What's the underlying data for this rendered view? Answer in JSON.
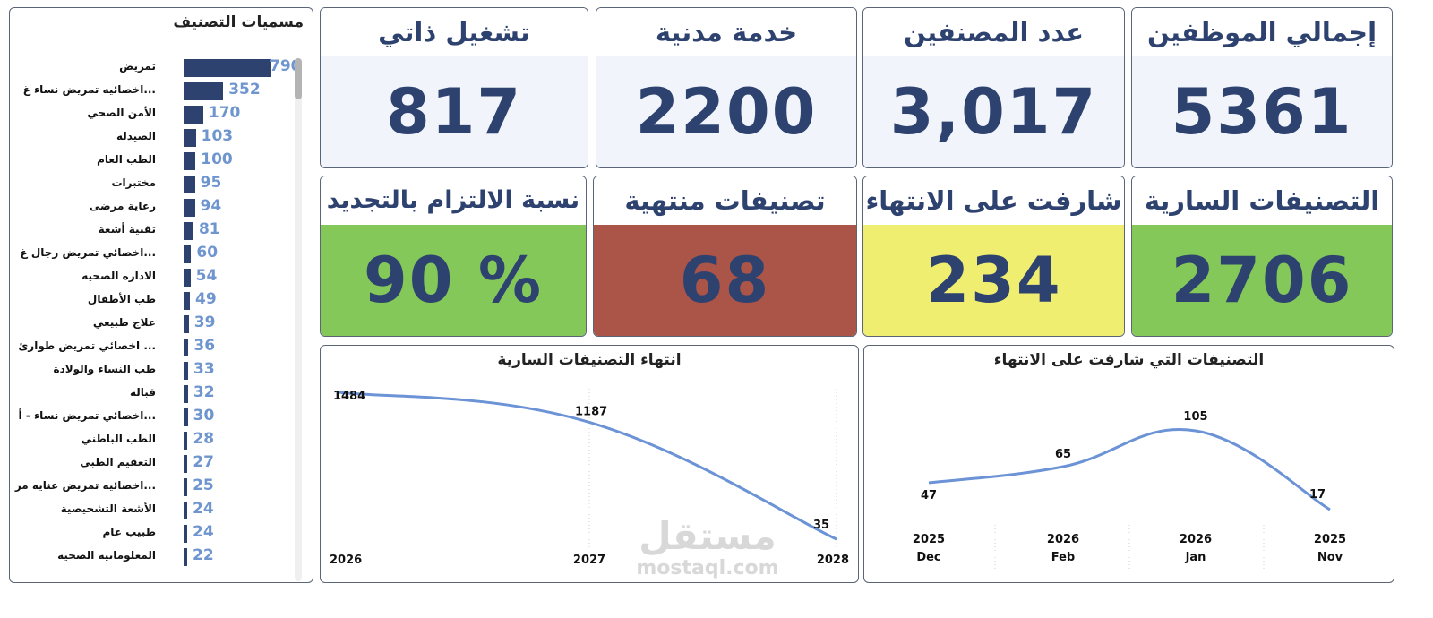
{
  "cards_row1": [
    {
      "id": "total-employees",
      "title": "إجمالي الموظفين",
      "value": "5361"
    },
    {
      "id": "classified-count",
      "title": "عدد المصنفين",
      "value": "3,017"
    },
    {
      "id": "civil-service",
      "title": "خدمة مدنية",
      "value": "2200"
    },
    {
      "id": "self-operation",
      "title": "تشغيل ذاتي",
      "value": "817"
    }
  ],
  "cards_row2": [
    {
      "id": "active-classifications",
      "title": "التصنيفات السارية",
      "value": "2706",
      "color": "#84c85a"
    },
    {
      "id": "near-expiry",
      "title": "شارفت على الانتهاء",
      "value": "234",
      "color": "#f0ee70"
    },
    {
      "id": "expired",
      "title": "تصنيفات منتهية",
      "value": "68",
      "color": "#ab5448"
    },
    {
      "id": "renewal-compliance",
      "title": "نسبة الالتزام بالتجديد",
      "value": "90 %",
      "color": "#84c85a"
    }
  ],
  "classification_list": {
    "title": "مسميات التصنيف",
    "items": [
      {
        "label": "تمريض",
        "value": 790
      },
      {
        "label": "...اخصائيه تمريض نساء غ",
        "value": 352
      },
      {
        "label": "الأمن الصحي",
        "value": 170
      },
      {
        "label": "الصيدله",
        "value": 103
      },
      {
        "label": "الطب العام",
        "value": 100
      },
      {
        "label": "مختبرات",
        "value": 95
      },
      {
        "label": "رعاية مرضى",
        "value": 94
      },
      {
        "label": "تقنية أشعة",
        "value": 81
      },
      {
        "label": "...اخصائي تمريض رجال غ",
        "value": 60
      },
      {
        "label": "الاداره الصحيه",
        "value": 54
      },
      {
        "label": "طب الأطفال",
        "value": 49
      },
      {
        "label": "علاج طبيعي",
        "value": 39
      },
      {
        "label": "... اخصائي تمريض طوارئ",
        "value": 36
      },
      {
        "label": "طب النساء والولادة",
        "value": 33
      },
      {
        "label": "قبالة",
        "value": 32
      },
      {
        "label": "...اخصائي تمريض نساء - أ",
        "value": 30
      },
      {
        "label": "الطب الباطني",
        "value": 28
      },
      {
        "label": "التعقيم الطبي",
        "value": 27
      },
      {
        "label": "...اخصائيه تمريض عنايه مر",
        "value": 25
      },
      {
        "label": "الأشعة التشخيصية",
        "value": 24
      },
      {
        "label": "طبيب عام",
        "value": 24
      },
      {
        "label": "المعلوماتية الصحية",
        "value": 22
      }
    ]
  },
  "chart_data": [
    {
      "id": "expiry-of-active",
      "type": "line",
      "title": "انتهاء التصنيفات السارية",
      "x": [
        "2026",
        "2027",
        "2028"
      ],
      "values": [
        1484,
        1187,
        35
      ],
      "color": "#6b93d6"
    },
    {
      "id": "near-expiry-trend",
      "type": "line",
      "title": "التصنيفات التي شارفت على الانتهاء",
      "x": [
        [
          "2025",
          "Dec"
        ],
        [
          "2026",
          "Feb"
        ],
        [
          "2026",
          "Jan"
        ],
        [
          "2025",
          "Nov"
        ]
      ],
      "values": [
        47,
        65,
        105,
        17
      ],
      "color": "#6b93d6"
    }
  ],
  "watermark": {
    "arabic": "مستقل",
    "latin": "mostaql.com"
  }
}
